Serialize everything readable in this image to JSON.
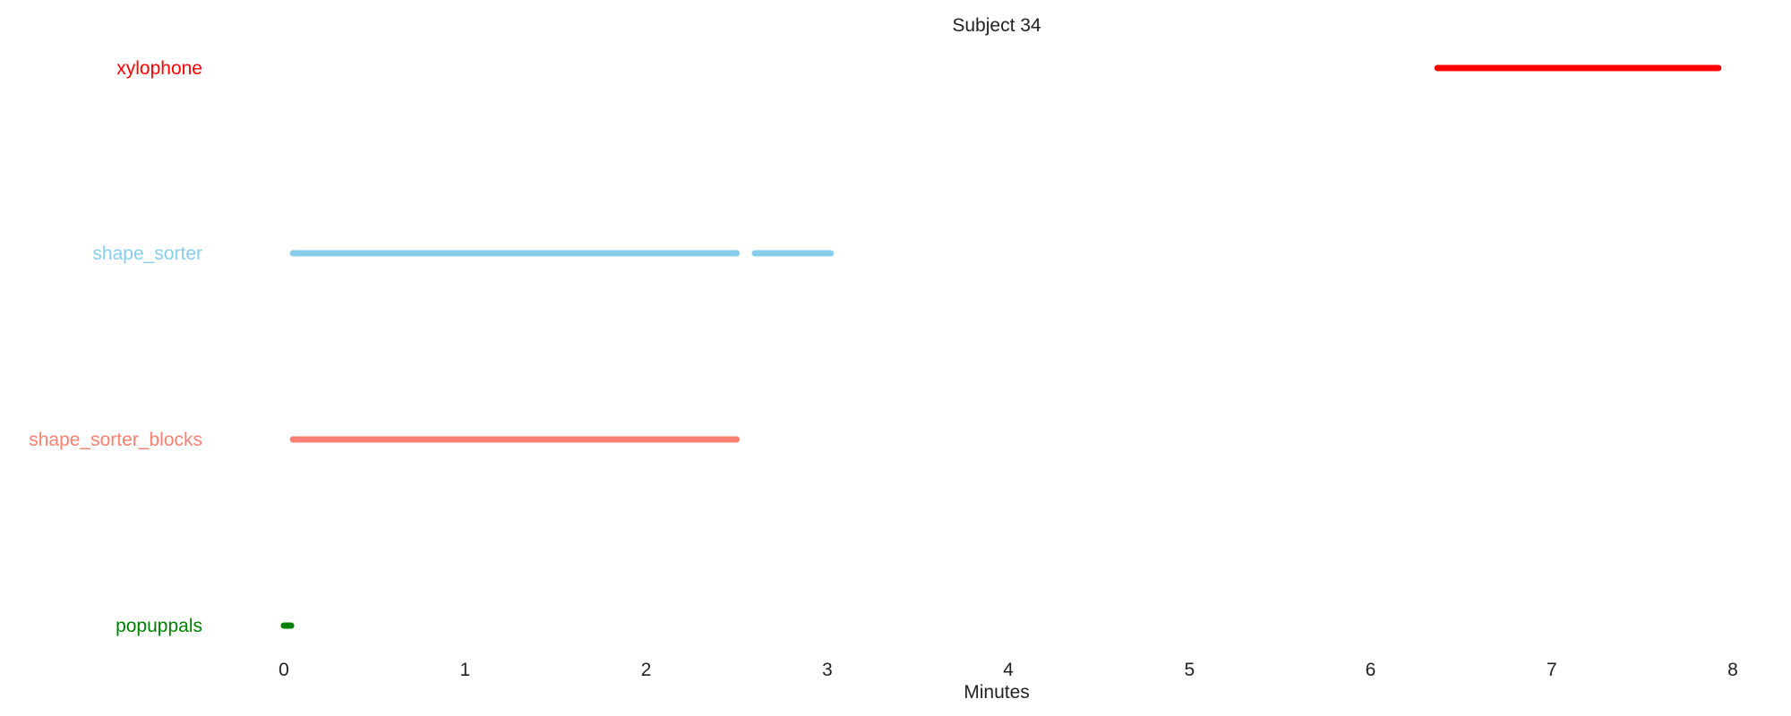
{
  "chart_data": {
    "type": "timeline",
    "title": "Subject 34",
    "xlabel": "Minutes",
    "ylabel": "",
    "xlim": [
      0,
      8
    ],
    "xticks": [
      0,
      1,
      2,
      3,
      4,
      5,
      6,
      7,
      8
    ],
    "grid": false,
    "legend": "none",
    "series": [
      {
        "name": "xylophone",
        "color": "#ff0000",
        "segments": [
          [
            6.37,
            7.92
          ]
        ]
      },
      {
        "name": "shape_sorter",
        "color": "#87ceeb",
        "segments": [
          [
            0.05,
            2.5
          ],
          [
            2.6,
            3.02
          ]
        ]
      },
      {
        "name": "shape_sorter_blocks",
        "color": "#fa8072",
        "segments": [
          [
            0.05,
            2.5
          ]
        ]
      },
      {
        "name": "popuppals",
        "color": "#008000",
        "segments": [
          [
            0.0,
            0.04
          ]
        ]
      }
    ]
  }
}
